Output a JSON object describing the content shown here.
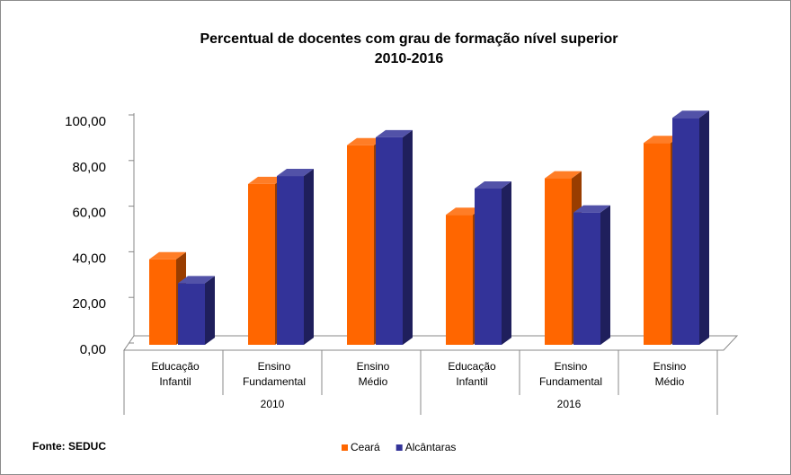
{
  "chart_data": {
    "type": "bar3d",
    "title": "Percentual de docentes com grau de formação nível superior",
    "subtitle": "2010-2016",
    "categories": [
      [
        "Educação",
        "Infantil"
      ],
      [
        "Ensino",
        "Fundamental"
      ],
      [
        "Ensino",
        "Médio"
      ],
      [
        "Educação",
        "Infantil"
      ],
      [
        "Ensino",
        "Fundamental"
      ],
      [
        "Ensino",
        "Médio"
      ]
    ],
    "groups": [
      "2010",
      "2016"
    ],
    "series": [
      {
        "name": "Ceará",
        "color": "#ff6600",
        "values": [
          37.5,
          70.5,
          87.5,
          57,
          73,
          88.5
        ]
      },
      {
        "name": "Alcântaras",
        "color": "#333399",
        "values": [
          27,
          74,
          91,
          68.5,
          58,
          99.5
        ]
      }
    ],
    "ylim": [
      0,
      100
    ],
    "yticks": [
      {
        "value": 0,
        "label": "0,00"
      },
      {
        "value": 20,
        "label": "20,00"
      },
      {
        "value": 40,
        "label": "40,00"
      },
      {
        "value": 60,
        "label": "60,00"
      },
      {
        "value": 80,
        "label": "80,00"
      },
      {
        "value": 100,
        "label": "100,00"
      }
    ],
    "source": "Fonte: SEDUC",
    "legend": "bottom"
  }
}
